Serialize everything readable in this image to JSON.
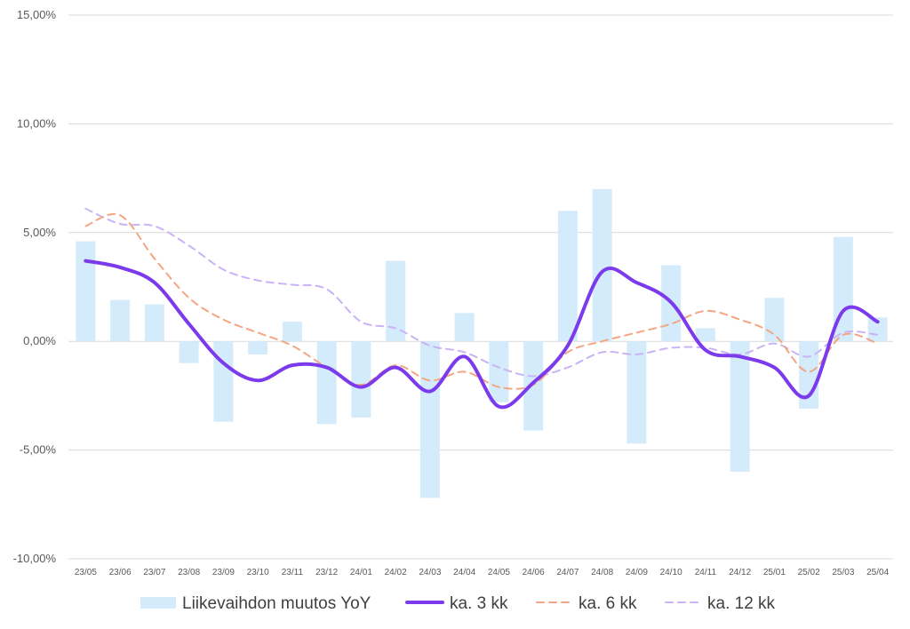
{
  "chart_data": {
    "type": "bar",
    "categories": [
      "23/05",
      "23/06",
      "23/07",
      "23/08",
      "23/09",
      "23/10",
      "23/11",
      "23/12",
      "24/01",
      "24/02",
      "24/03",
      "24/04",
      "24/05",
      "24/06",
      "24/07",
      "24/08",
      "24/09",
      "24/10",
      "24/11",
      "24/12",
      "25/01",
      "25/02",
      "25/03",
      "25/04"
    ],
    "ylim": [
      -10,
      15
    ],
    "yticks": [
      15,
      10,
      5,
      0,
      -5,
      -10
    ],
    "ytick_labels": [
      "15,00%",
      "10,00%",
      "5,00%",
      "0,00%",
      "-5,00%",
      "-10,00%"
    ],
    "grid": true,
    "legend_position": "bottom",
    "series": [
      {
        "name": "Liikevaihdon muutos YoY",
        "kind": "bar",
        "color": "#d3ebfb",
        "values": [
          4.6,
          1.9,
          1.7,
          -1.0,
          -3.7,
          -0.6,
          0.9,
          -3.8,
          -3.5,
          3.7,
          -7.2,
          1.3,
          -2.8,
          -4.1,
          6.0,
          7.0,
          -4.7,
          3.5,
          0.6,
          -6.0,
          2.0,
          -3.1,
          4.8,
          1.1
        ]
      },
      {
        "name": "ka. 3 kk",
        "kind": "line",
        "style": "solid",
        "color": "#7c3aed",
        "values": [
          3.7,
          3.4,
          2.7,
          0.8,
          -1.0,
          -1.8,
          -1.1,
          -1.2,
          -2.1,
          -1.2,
          -2.3,
          -0.7,
          -3.0,
          -1.9,
          -0.2,
          3.2,
          2.7,
          1.8,
          -0.4,
          -0.7,
          -1.2,
          -2.5,
          1.4,
          0.9
        ]
      },
      {
        "name": "ka. 6 kk",
        "kind": "line",
        "style": "dashed",
        "color": "#f4a582",
        "values": [
          5.3,
          5.8,
          3.8,
          2.0,
          1.0,
          0.4,
          -0.2,
          -1.2,
          -2.0,
          -1.1,
          -1.8,
          -1.4,
          -2.1,
          -2.0,
          -0.5,
          0.0,
          0.4,
          0.8,
          1.4,
          1.0,
          0.3,
          -1.4,
          0.3,
          -0.1
        ]
      },
      {
        "name": "ka. 12 kk",
        "kind": "line",
        "style": "dashed",
        "color": "#c9b3f5",
        "values": [
          6.1,
          5.4,
          5.3,
          4.4,
          3.3,
          2.8,
          2.6,
          2.4,
          0.9,
          0.6,
          -0.2,
          -0.5,
          -1.2,
          -1.6,
          -1.2,
          -0.5,
          -0.6,
          -0.3,
          -0.3,
          -0.6,
          -0.1,
          -0.7,
          0.4,
          0.3
        ]
      }
    ]
  }
}
